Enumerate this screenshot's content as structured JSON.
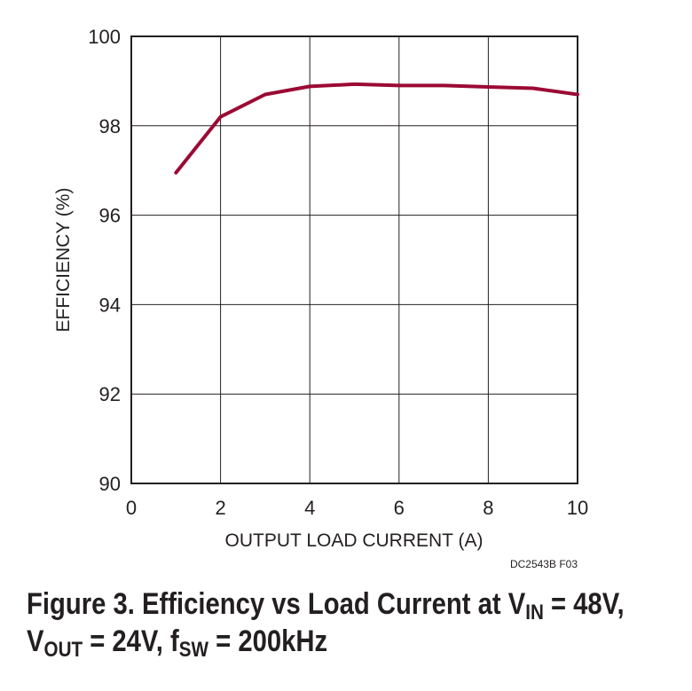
{
  "chart_data": {
    "type": "line",
    "xlabel": "OUTPUT LOAD CURRENT (A)",
    "ylabel": "EFFICIENCY (%)",
    "xlim": [
      0,
      10
    ],
    "ylim": [
      90,
      100
    ],
    "x_ticks": [
      "0",
      "2",
      "4",
      "6",
      "8",
      "10"
    ],
    "y_ticks": [
      "90",
      "92",
      "94",
      "96",
      "98",
      "100"
    ],
    "grid": true,
    "series": [
      {
        "color": "#9b0a34",
        "x": [
          1,
          2,
          3,
          4,
          5,
          6,
          7,
          8,
          9,
          10
        ],
        "y": [
          96.95,
          98.2,
          98.7,
          98.88,
          98.93,
          98.9,
          98.9,
          98.87,
          98.84,
          98.7
        ]
      }
    ]
  },
  "figure_id": "DC2543B F03",
  "caption": {
    "line1_prefix": "Figure 3. Efficiency vs Load Current at V",
    "line1_sub": "IN",
    "line1_suffix": " = 48V,",
    "line2_v": "V",
    "line2_sub1": "OUT",
    "line2_mid": " = 24V, f",
    "line2_sub2": "SW",
    "line2_suffix": " = 200kHz"
  },
  "colors": {
    "curve": "#9b0a34",
    "grid": "#231f20",
    "text": "#231f20"
  }
}
